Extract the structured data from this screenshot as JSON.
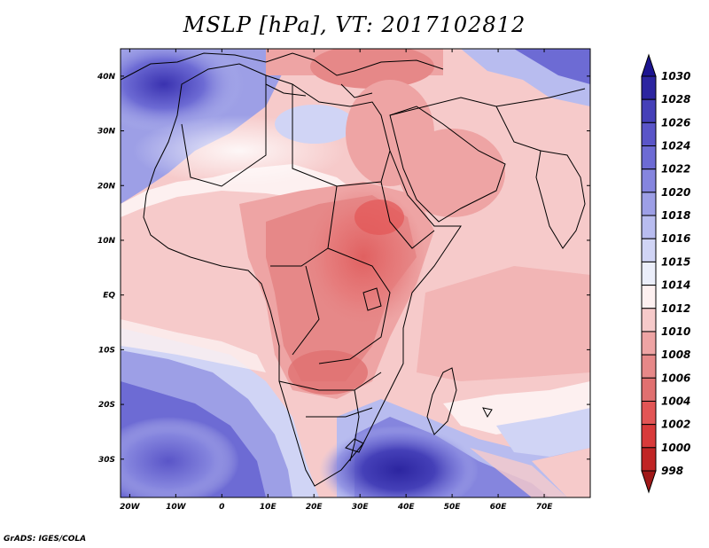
{
  "title": "MSLP [hPa], VT: 2017102812",
  "credit": "GrADS: IGES/COLA",
  "map": {
    "lon_range": [
      -22,
      80
    ],
    "lat_range": [
      -37,
      45
    ],
    "x_ticks": [
      "20W",
      "10W",
      "0",
      "10E",
      "20E",
      "30E",
      "40E",
      "50E",
      "60E",
      "70E"
    ],
    "x_tick_lons": [
      -20,
      -10,
      0,
      10,
      20,
      30,
      40,
      50,
      60,
      70
    ],
    "y_ticks": [
      "40N",
      "30N",
      "20N",
      "10N",
      "EQ",
      "10S",
      "20S",
      "30S"
    ],
    "y_tick_lats": [
      40,
      30,
      20,
      10,
      0,
      -10,
      -20,
      -30
    ]
  },
  "colorbar": {
    "levels": [
      "998",
      "1000",
      "1002",
      "1004",
      "1006",
      "1008",
      "1010",
      "1012",
      "1014",
      "1015",
      "1016",
      "1018",
      "1020",
      "1022",
      "1024",
      "1026",
      "1028",
      "1030"
    ],
    "colors": [
      "#a01818",
      "#c02525",
      "#d83a3a",
      "#e25555",
      "#e07070",
      "#e68888",
      "#eea4a4",
      "#f6caca",
      "#fdf0f0",
      "#ebeefa",
      "#d0d4f5",
      "#b8bcef",
      "#9d9fe6",
      "#8585de",
      "#6d6bd4",
      "#5a55c8",
      "#4540b8",
      "#2c25a0",
      "#1c1490"
    ]
  }
}
